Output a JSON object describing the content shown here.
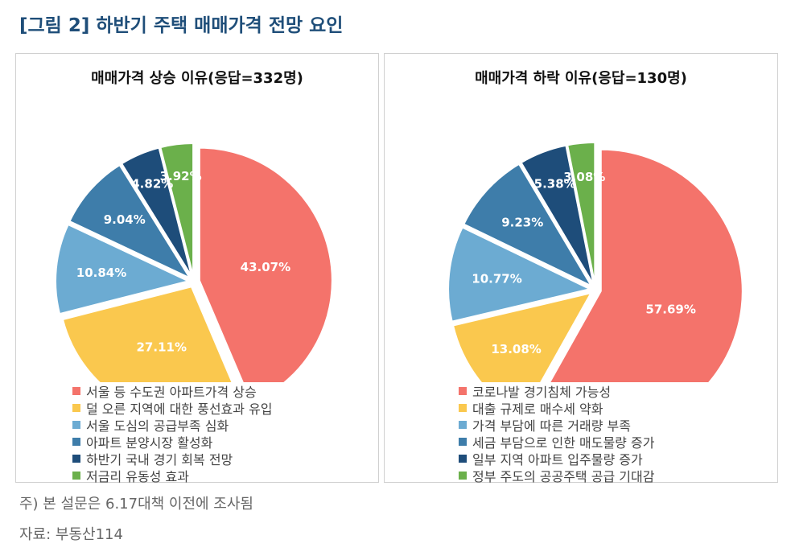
{
  "figure": {
    "title": "[그림 2] 하반기 주택 매매가격 전망 요인",
    "notes": [
      "주) 본 설문은 6.17대책 이전에 조사됨",
      "자료: 부동산114"
    ]
  },
  "chart_data": [
    {
      "type": "pie",
      "title": "매매가격 상승 이유(응답=332명)",
      "categories": [
        "서울 등 수도권 아파트가격 상승",
        "덜 오른 지역에 대한 풍선효과 유입",
        "서울 도심의 공급부족 심화",
        "아파트 분양시장 활성화",
        "하반기 국내 경기 회복 전망",
        "저금리 유동성 효과"
      ],
      "values": [
        43.07,
        27.11,
        10.84,
        9.04,
        4.82,
        3.92
      ],
      "labels": [
        "43.07%",
        "27.11%",
        "10.84%",
        "9.04%",
        "4.82%",
        "3.92%"
      ],
      "colors": [
        "#f4736b",
        "#fac84e",
        "#6cabd2",
        "#3e7daa",
        "#1e4d7a",
        "#6bb04b"
      ],
      "legend_position": "bottom"
    },
    {
      "type": "pie",
      "title": "매매가격 하락 이유(응답=130명)",
      "categories": [
        "코로나발 경기침체 가능성",
        "대출 규제로 매수세 약화",
        "가격 부담에 따른 거래량 부족",
        "세금 부담으로 인한 매도물량 증가",
        "일부 지역 아파트 입주물량 증가",
        "정부 주도의 공공주택 공급 기대감"
      ],
      "values": [
        57.69,
        13.08,
        10.77,
        9.23,
        5.38,
        3.08
      ],
      "labels": [
        "57.69%",
        "13.08%",
        "10.77%",
        "9.23%",
        "5.38%",
        "3.08%"
      ],
      "colors": [
        "#f4736b",
        "#fac84e",
        "#6cabd2",
        "#3e7daa",
        "#1e4d7a",
        "#6bb04b"
      ],
      "legend_position": "bottom"
    }
  ]
}
